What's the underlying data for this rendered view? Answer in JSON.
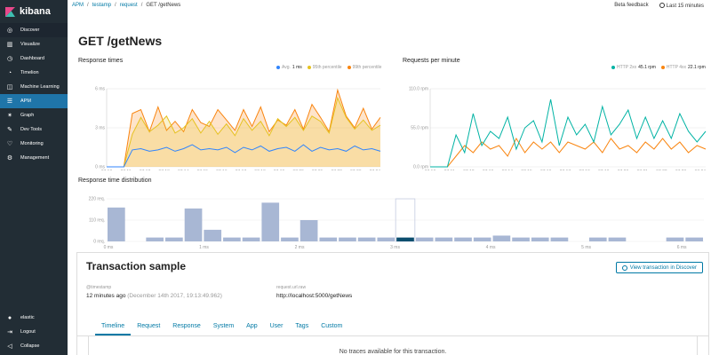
{
  "sidebar": {
    "brand": "kibana",
    "items": [
      {
        "label": "Discover",
        "icon": "compass-icon"
      },
      {
        "label": "Visualize",
        "icon": "bar-chart-icon"
      },
      {
        "label": "Dashboard",
        "icon": "dashboard-icon"
      },
      {
        "label": "Timelion",
        "icon": "timelion-icon"
      },
      {
        "label": "Machine Learning",
        "icon": "ml-icon"
      },
      {
        "label": "APM",
        "icon": "apm-icon"
      },
      {
        "label": "Graph",
        "icon": "graph-icon"
      },
      {
        "label": "Dev Tools",
        "icon": "wrench-icon"
      },
      {
        "label": "Monitoring",
        "icon": "heart-icon"
      },
      {
        "label": "Management",
        "icon": "gear-icon"
      }
    ],
    "bottom": [
      {
        "label": "elastic",
        "icon": "user-icon"
      },
      {
        "label": "Logout",
        "icon": "logout-icon"
      },
      {
        "label": "Collapse",
        "icon": "collapse-icon"
      }
    ]
  },
  "breadcrumb": {
    "items": [
      "APM",
      "testamp",
      "request"
    ],
    "current": "GET /getNews"
  },
  "topbar": {
    "feedback": "Beta feedback",
    "time": "Last 15 minutes"
  },
  "page": {
    "title": "GET /getNews"
  },
  "response_times": {
    "title": "Response times",
    "legend": [
      {
        "label": "Avg.",
        "value": "1 ms",
        "color": "#3185fc"
      },
      {
        "label": "95th percentile",
        "value": "",
        "color": "#e6c220"
      },
      {
        "label": "99th percentile",
        "value": "",
        "color": "#f98510"
      }
    ],
    "y_ticks": [
      "6 ms",
      "3 ms",
      "0 ms"
    ]
  },
  "requests_per_minute": {
    "title": "Requests per minute",
    "legend": [
      {
        "label": "HTTP 2xx",
        "value": "45.1 rpm",
        "color": "#00b3a4"
      },
      {
        "label": "HTTP 4xx",
        "value": "22.1 rpm",
        "color": "#f98510"
      }
    ],
    "y_ticks": [
      "110.0 rpm",
      "55.0 rpm",
      "0.0 rpm"
    ]
  },
  "x_ticks": [
    "07:10",
    "07:11",
    "07:12",
    "07:13",
    "07:14",
    "07:15",
    "07:16",
    "07:17",
    "07:18",
    "07:19",
    "07:20",
    "07:21",
    "07:22",
    "07:23",
    "07:24"
  ],
  "distribution": {
    "title": "Response time distribution",
    "y_ticks": [
      "220 req.",
      "110 req.",
      "0 req."
    ],
    "x_ticks": [
      "0 ms",
      "1 ms",
      "2 ms",
      "3 ms",
      "4 ms",
      "5 ms",
      "6 ms"
    ],
    "bars": [
      175,
      0,
      20,
      20,
      170,
      60,
      20,
      20,
      200,
      20,
      110,
      20,
      20,
      20,
      20,
      20,
      20,
      20,
      20,
      20,
      30,
      20,
      20,
      20,
      0,
      20,
      20,
      0,
      0,
      20,
      20
    ]
  },
  "chart_data": [
    {
      "type": "area",
      "title": "Response times",
      "ylim": [
        0,
        6
      ],
      "series": [
        {
          "name": "Avg.",
          "values": [
            0,
            0,
            0,
            1.3,
            1.4,
            1.2,
            1.3,
            1.5,
            1.2,
            1.4,
            1.7,
            1.3,
            1.4,
            1.3,
            1.5,
            1.1,
            1.5,
            1.3,
            1.6,
            1.2,
            1.4,
            1.5,
            1.2,
            1.7,
            1.2,
            1.5,
            1.3,
            1.4,
            1.2,
            1.6,
            1.3,
            1.4,
            1.2
          ]
        },
        {
          "name": "95th percentile",
          "values": [
            0,
            0,
            0,
            2.5,
            3.8,
            2.7,
            3.2,
            3.9,
            2.6,
            3.0,
            3.7,
            2.6,
            3.5,
            2.5,
            3.3,
            2.4,
            3.7,
            2.8,
            3.5,
            2.4,
            3.7,
            3.1,
            3.8,
            2.8,
            3.9,
            3.5,
            2.6,
            5.3,
            3.8,
            2.9,
            3.6,
            2.8,
            3.2
          ]
        },
        {
          "name": "99th percentile",
          "values": [
            0,
            0,
            0,
            4.1,
            4.4,
            2.7,
            4.6,
            2.8,
            3.5,
            2.7,
            4.4,
            3.4,
            3.1,
            4.4,
            3.6,
            2.8,
            4.4,
            3.1,
            4.6,
            2.7,
            3.6,
            3.2,
            4.4,
            2.9,
            4.8,
            3.8,
            2.7,
            5.9,
            3.9,
            3.0,
            4.5,
            2.9,
            3.8
          ]
        }
      ]
    },
    {
      "type": "line",
      "title": "Requests per minute",
      "ylim": [
        0,
        110
      ],
      "series": [
        {
          "name": "HTTP 2xx",
          "values": [
            0,
            0,
            0,
            45,
            20,
            75,
            30,
            50,
            40,
            70,
            25,
            55,
            65,
            35,
            95,
            30,
            70,
            45,
            60,
            35,
            85,
            45,
            60,
            80,
            40,
            70,
            40,
            65,
            40,
            75,
            50,
            35,
            50
          ]
        },
        {
          "name": "HTTP 4xx",
          "values": [
            0,
            0,
            0,
            15,
            30,
            20,
            35,
            25,
            30,
            15,
            40,
            20,
            35,
            25,
            35,
            20,
            35,
            30,
            25,
            35,
            20,
            40,
            25,
            30,
            20,
            35,
            25,
            40,
            25,
            35,
            20,
            30,
            25
          ]
        }
      ]
    }
  ],
  "transaction": {
    "title": "Transaction sample",
    "button": "View transaction in Discover",
    "timestamp_label": "@timestamp",
    "timestamp_relative": "12 minutes ago",
    "timestamp_abs": "(December 14th 2017, 19:13:49.962)",
    "url_label": "request.url.raw",
    "url_value": "http://localhost:5000/getNews",
    "tabs": [
      "Timeline",
      "Request",
      "Response",
      "System",
      "App",
      "User",
      "Tags",
      "Custom"
    ],
    "empty": "No traces available for this transaction."
  }
}
